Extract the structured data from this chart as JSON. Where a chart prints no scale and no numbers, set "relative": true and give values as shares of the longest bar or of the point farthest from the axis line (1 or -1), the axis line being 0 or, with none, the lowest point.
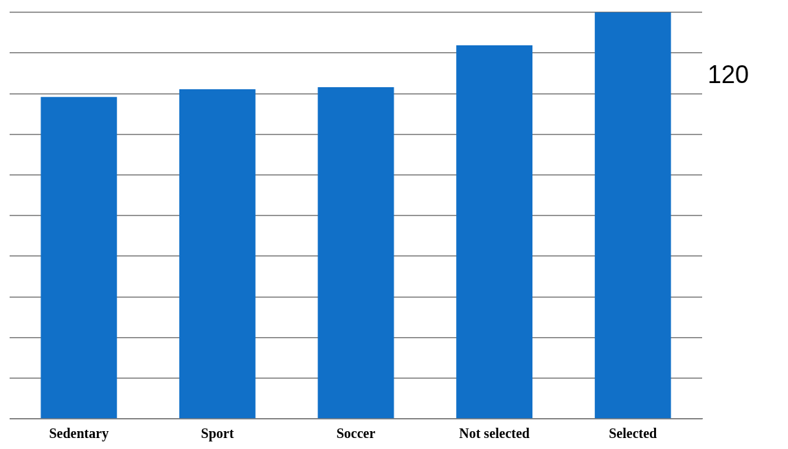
{
  "chart_data": {
    "type": "bar",
    "categories": [
      "Sedentary",
      "Sport",
      "Soccer",
      "Not selected",
      "Selected"
    ],
    "values": [
      0.792,
      0.811,
      0.816,
      0.919,
      1
    ],
    "color": "#1170c8",
    "relative": true,
    "grid": "y",
    "legend": false,
    "annotations": [
      "120"
    ]
  }
}
